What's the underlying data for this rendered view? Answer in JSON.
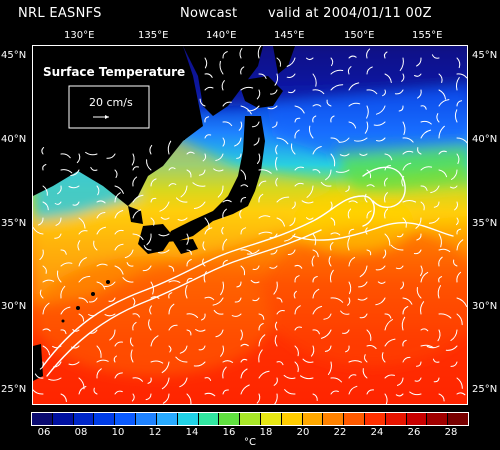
{
  "header": {
    "source": "NRL EASNFS",
    "product": "Nowcast",
    "valid": "valid at 2004/01/11 00Z"
  },
  "map": {
    "field_label": "Surface Temperature",
    "vector_scale_label": "20 cm/s",
    "longitude_labels": [
      "130°E",
      "135°E",
      "140°E",
      "145°E",
      "150°E",
      "155°E"
    ],
    "latitude_labels": [
      "45°N",
      "40°N",
      "35°N",
      "30°N",
      "25°N"
    ],
    "land_color": "#000000",
    "arrow_color": "#ffffff"
  },
  "colorbar": {
    "unit": "°C",
    "tick_labels": [
      "06",
      "08",
      "10",
      "12",
      "14",
      "16",
      "18",
      "20",
      "22",
      "24",
      "26",
      "28"
    ],
    "colors": [
      "#0a0a70",
      "#0010a0",
      "#0026c8",
      "#003ce6",
      "#0a5aff",
      "#1e82ff",
      "#28aaff",
      "#20d2e6",
      "#30e6a0",
      "#60e040",
      "#a8e628",
      "#e6e614",
      "#ffcc00",
      "#ffa800",
      "#ff8200",
      "#ff5a00",
      "#ff3000",
      "#e61400",
      "#c80000",
      "#a00000",
      "#780000"
    ]
  }
}
